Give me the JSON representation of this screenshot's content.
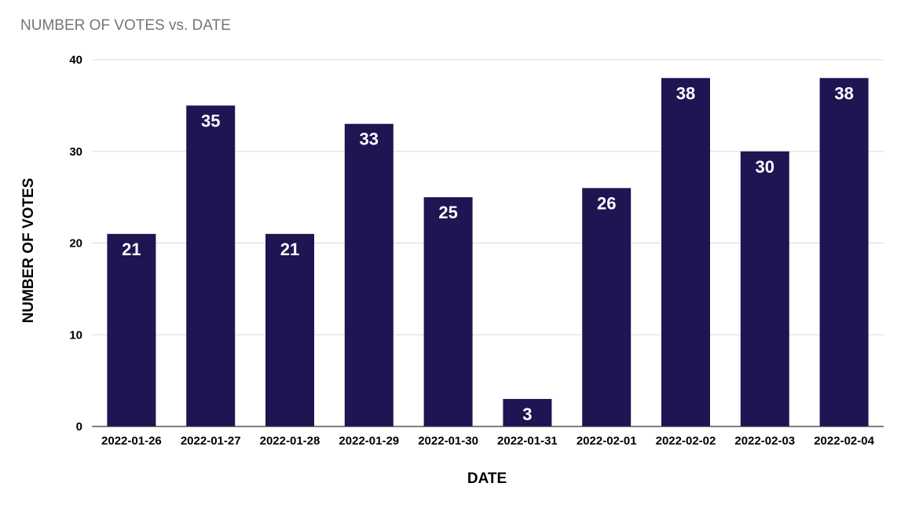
{
  "chart_data": {
    "type": "bar",
    "title": "NUMBER OF VOTES vs. DATE",
    "xlabel": "DATE",
    "ylabel": "NUMBER OF VOTES",
    "categories": [
      "2022-01-26",
      "2022-01-27",
      "2022-01-28",
      "2022-01-29",
      "2022-01-30",
      "2022-01-31",
      "2022-02-01",
      "2022-02-02",
      "2022-02-03",
      "2022-02-04"
    ],
    "values": [
      21,
      35,
      21,
      33,
      25,
      3,
      26,
      38,
      30,
      38
    ],
    "ylim": [
      0,
      40
    ],
    "yticks": [
      0,
      10,
      20,
      30,
      40
    ],
    "grid": true,
    "legend": "none",
    "data_labels": true,
    "bar_color": "#201453",
    "data_label_color": "#ffffff",
    "grid_color": "#d9d9d9",
    "axis_color": "#333333"
  }
}
